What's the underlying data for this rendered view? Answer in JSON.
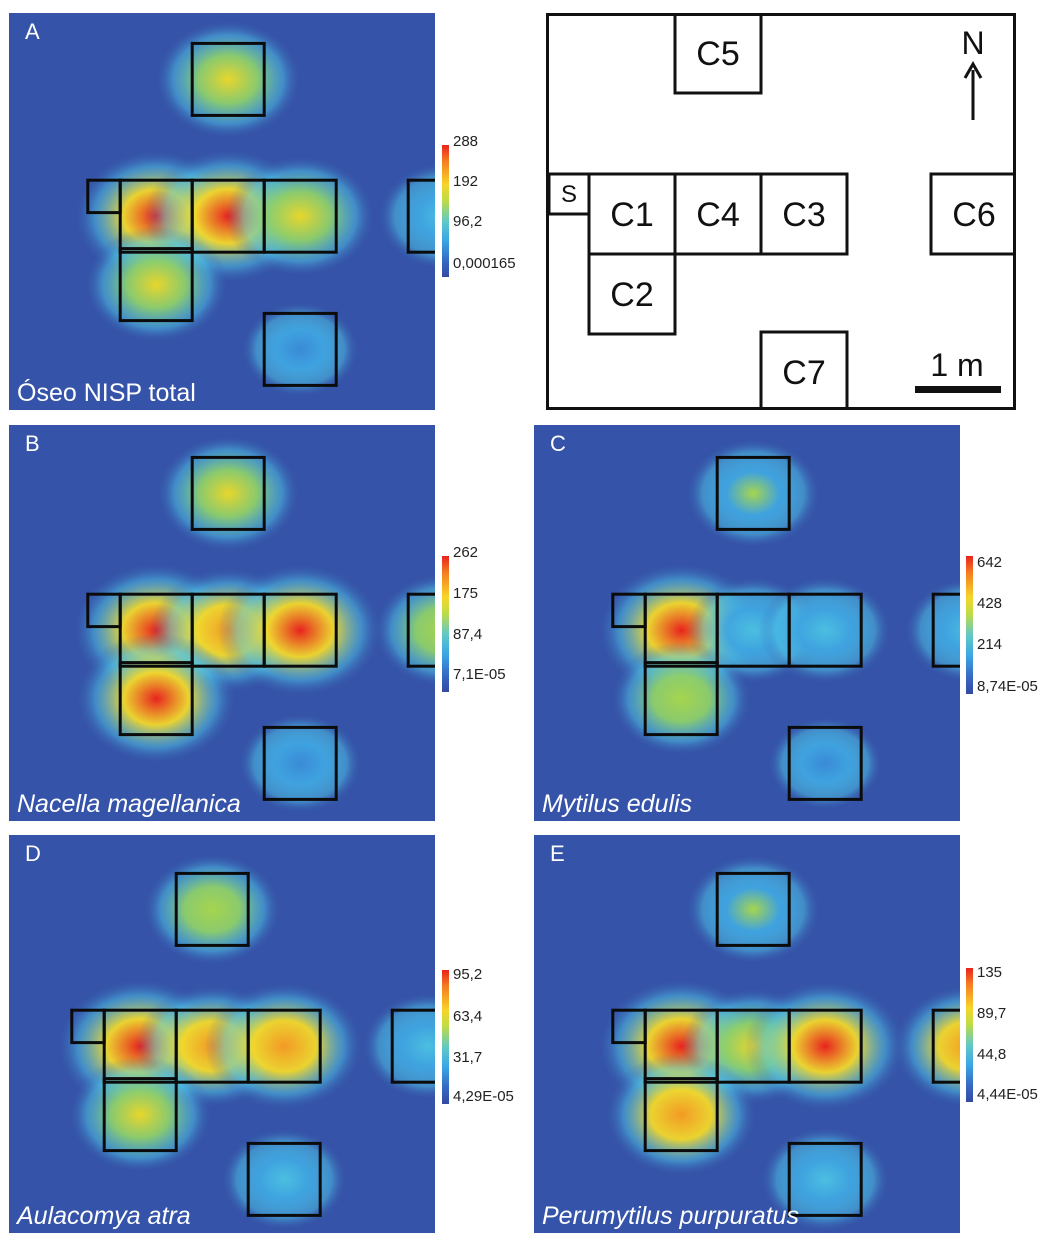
{
  "panels": [
    {
      "letter": "A",
      "caption": "Óseo NISP total",
      "legend_labels": [
        "288",
        "192",
        "96,2",
        "0,000165"
      ],
      "hotspots": [
        {
          "unit": "C5",
          "level": 0.65
        },
        {
          "unit": "C1",
          "level": 0.95
        },
        {
          "unit": "C4",
          "level": 1.0
        },
        {
          "unit": "C3",
          "level": 0.7
        },
        {
          "unit": "C2",
          "level": 0.6
        },
        {
          "unit": "C6",
          "level": 0.4
        },
        {
          "unit": "C7",
          "level": 0.15
        }
      ]
    },
    {
      "letter": "B",
      "caption": "Nacella magellanica",
      "legend_labels": [
        "262",
        "175",
        "87,4",
        "7,1E-05"
      ],
      "hotspots": [
        {
          "unit": "C5",
          "level": 0.6
        },
        {
          "unit": "C1",
          "level": 1.0
        },
        {
          "unit": "C4",
          "level": 0.8
        },
        {
          "unit": "C3",
          "level": 0.95
        },
        {
          "unit": "C2",
          "level": 0.9
        },
        {
          "unit": "C6",
          "level": 0.55
        },
        {
          "unit": "C7",
          "level": 0.25
        }
      ]
    },
    {
      "letter": "C",
      "caption": "Mytilus edulis",
      "legend_labels": [
        "642",
        "428",
        "214",
        "8,74E-05"
      ],
      "hotspots": [
        {
          "unit": "C5",
          "level": 0.45
        },
        {
          "unit": "C1",
          "level": 1.0
        },
        {
          "unit": "C4",
          "level": 0.4
        },
        {
          "unit": "C3",
          "level": 0.4
        },
        {
          "unit": "C2",
          "level": 0.55
        },
        {
          "unit": "C6",
          "level": 0.35
        },
        {
          "unit": "C7",
          "level": 0.1
        }
      ]
    },
    {
      "letter": "D",
      "caption": "Aulacomya atra",
      "legend_labels": [
        "95,2",
        "63,4",
        "31,7",
        "4,29E-05"
      ],
      "hotspots": [
        {
          "unit": "C5",
          "level": 0.5
        },
        {
          "unit": "C1",
          "level": 1.0
        },
        {
          "unit": "C4",
          "level": 0.75
        },
        {
          "unit": "C3",
          "level": 0.85
        },
        {
          "unit": "C2",
          "level": 0.6
        },
        {
          "unit": "C6",
          "level": 0.4
        },
        {
          "unit": "C7",
          "level": 0.3
        }
      ]
    },
    {
      "letter": "E",
      "caption": "Perumytilus purpuratus",
      "legend_labels": [
        "135",
        "89,7",
        "44,8",
        "4,44E-05"
      ],
      "hotspots": [
        {
          "unit": "C5",
          "level": 0.45
        },
        {
          "unit": "C1",
          "level": 1.0
        },
        {
          "unit": "C4",
          "level": 0.6
        },
        {
          "unit": "C3",
          "level": 0.9
        },
        {
          "unit": "C2",
          "level": 0.75
        },
        {
          "unit": "C6",
          "level": 0.75
        },
        {
          "unit": "C7",
          "level": 0.35
        }
      ]
    }
  ],
  "key_map": {
    "units": [
      "C5",
      "S",
      "C1",
      "C4",
      "C3",
      "C6",
      "C2",
      "C7"
    ],
    "north_label": "N",
    "scale_label": "1 m"
  }
}
